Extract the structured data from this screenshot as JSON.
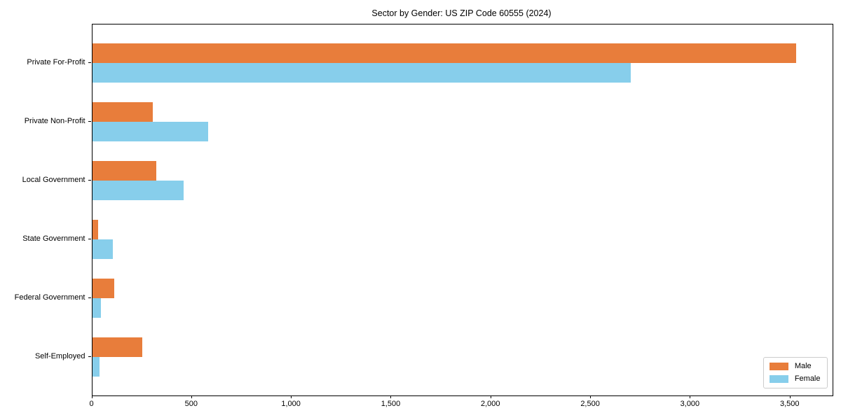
{
  "title": "Sector by Gender: US ZIP Code 60555 (2024)",
  "chart_data": {
    "type": "bar",
    "orientation": "horizontal",
    "title": "Sector by Gender: US ZIP Code 60555 (2024)",
    "categories": [
      "Private For-Profit",
      "Private Non-Profit",
      "Local Government",
      "State Government",
      "Federal Government",
      "Self-Employed"
    ],
    "series": [
      {
        "name": "Male",
        "color": "#e87d3b",
        "values": [
          3530,
          305,
          320,
          30,
          110,
          250
        ]
      },
      {
        "name": "Female",
        "color": "#87ceeb",
        "values": [
          2700,
          580,
          460,
          105,
          45,
          35
        ]
      }
    ],
    "xlabel": "",
    "ylabel": "",
    "xlim": [
      0,
      3710
    ],
    "x_ticks": [
      0,
      500,
      1000,
      1500,
      2000,
      2500,
      3000,
      3500
    ],
    "x_tick_labels": [
      "0",
      "500",
      "1,000",
      "1,500",
      "2,000",
      "2,500",
      "3,000",
      "3,500"
    ],
    "grid": false,
    "legend": {
      "position": "lower right",
      "entries": [
        {
          "label": "Male",
          "color": "#e87d3b"
        },
        {
          "label": "Female",
          "color": "#87ceeb"
        }
      ]
    },
    "colors": {
      "male": "#e87d3b",
      "female": "#87ceeb",
      "spine": "#000000",
      "legend_border": "#cccccc",
      "background": "#ffffff"
    }
  }
}
